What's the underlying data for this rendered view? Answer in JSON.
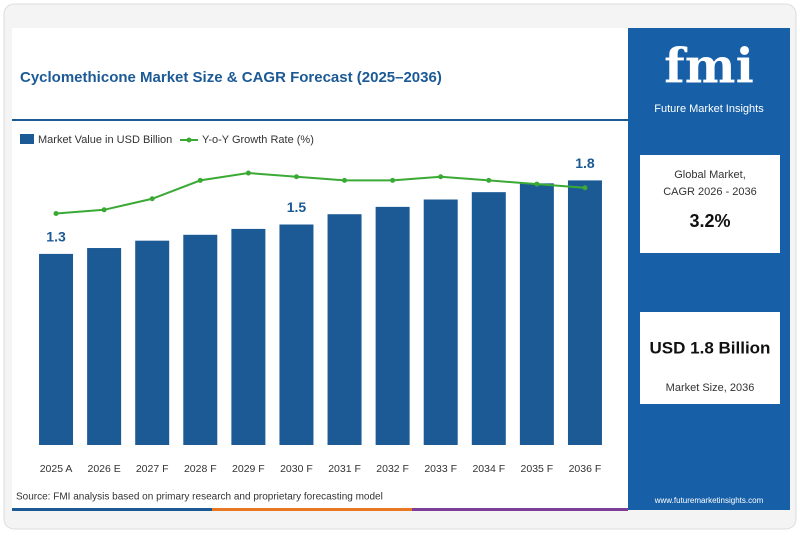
{
  "chart_data": {
    "type": "bar",
    "title": "Cyclomethicone Market Size & CAGR Forecast (2025–2036)",
    "categories": [
      "2025 A",
      "2026 E",
      "2027 F",
      "2028 F",
      "2029 F",
      "2030 F",
      "2031 F",
      "2032 F",
      "2033 F",
      "2034 F",
      "2035 F",
      "2036 F"
    ],
    "series": [
      {
        "name": "Market Value in USD Billion",
        "color": "#1c5a96",
        "values": [
          1.3,
          1.34,
          1.39,
          1.43,
          1.47,
          1.5,
          1.57,
          1.62,
          1.67,
          1.72,
          1.78,
          1.8
        ],
        "value_labels": [
          "1.3",
          null,
          null,
          null,
          null,
          "1.5",
          null,
          null,
          null,
          null,
          null,
          "1.8"
        ]
      },
      {
        "name": "Y-o-Y Growth Rate (%)",
        "color": "#3aaa35",
        "type": "line",
        "axis": "y2",
        "values": [
          3.3,
          3.4,
          3.7,
          4.2,
          4.4,
          4.3,
          4.2,
          4.2,
          4.3,
          4.2,
          4.1,
          4.0
        ]
      }
    ],
    "ylim": [
      0,
      2
    ],
    "y2lim": [
      -3,
      5
    ],
    "grid": false,
    "source": "Source: FMI analysis based on primary research and proprietary forecasting model"
  },
  "side_panel": {
    "logo": "fmi",
    "brand": "Future Market Insights",
    "cagr_label_1": "Global Market,",
    "cagr_label_2": "CAGR 2026 - 2036",
    "cagr_value": "3.2%",
    "size_value": "USD 1.8 Billion",
    "size_label": "Market Size, 2036",
    "website": "www.futuremarketinsights.com"
  }
}
